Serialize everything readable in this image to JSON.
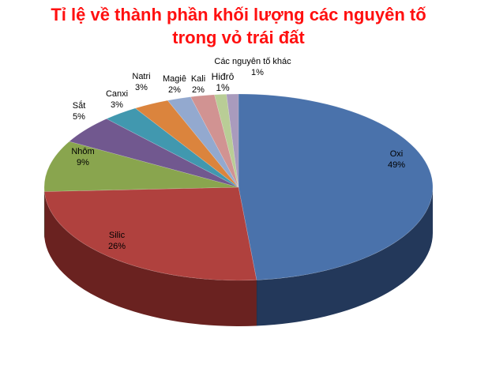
{
  "chart_data": {
    "type": "pie",
    "title_line1": "Tỉ lệ về thành phần khối lượng các nguyên tố",
    "title_line2": "trong vỏ trái đất",
    "slices": [
      {
        "label": "Oxi",
        "value": 49,
        "value_label": "49%",
        "color": "#4a72ab",
        "side": "#23385a"
      },
      {
        "label": "Silic",
        "value": 26,
        "value_label": "26%",
        "color": "#b0413e",
        "side": "#6a2220"
      },
      {
        "label": "Nhôm",
        "value": 9,
        "value_label": "9%",
        "color": "#89a54e",
        "side": "#4f6329"
      },
      {
        "label": "Sắt",
        "value": 5,
        "value_label": "5%",
        "color": "#71588f",
        "side": "#3e2e52"
      },
      {
        "label": "Canxi",
        "value": 3,
        "value_label": "3%",
        "color": "#4198af",
        "side": "#1f5766"
      },
      {
        "label": "Natri",
        "value": 3,
        "value_label": "3%",
        "color": "#db843d",
        "side": "#87491c"
      },
      {
        "label": "Magiê",
        "value": 2,
        "value_label": "2%",
        "color": "#93a9cf",
        "side": "#55698e"
      },
      {
        "label": "Kali",
        "value": 2,
        "value_label": "2%",
        "color": "#d19392",
        "side": "#8a5352"
      },
      {
        "label": "Hiđrô",
        "value": 1,
        "value_label": "1%",
        "color": "#b9cd96",
        "side": "#748a52"
      },
      {
        "label": "Các nguyên tố khác",
        "value": 1,
        "value_label": "1%",
        "color": "#a99bbd",
        "side": "#675a7a"
      }
    ]
  }
}
